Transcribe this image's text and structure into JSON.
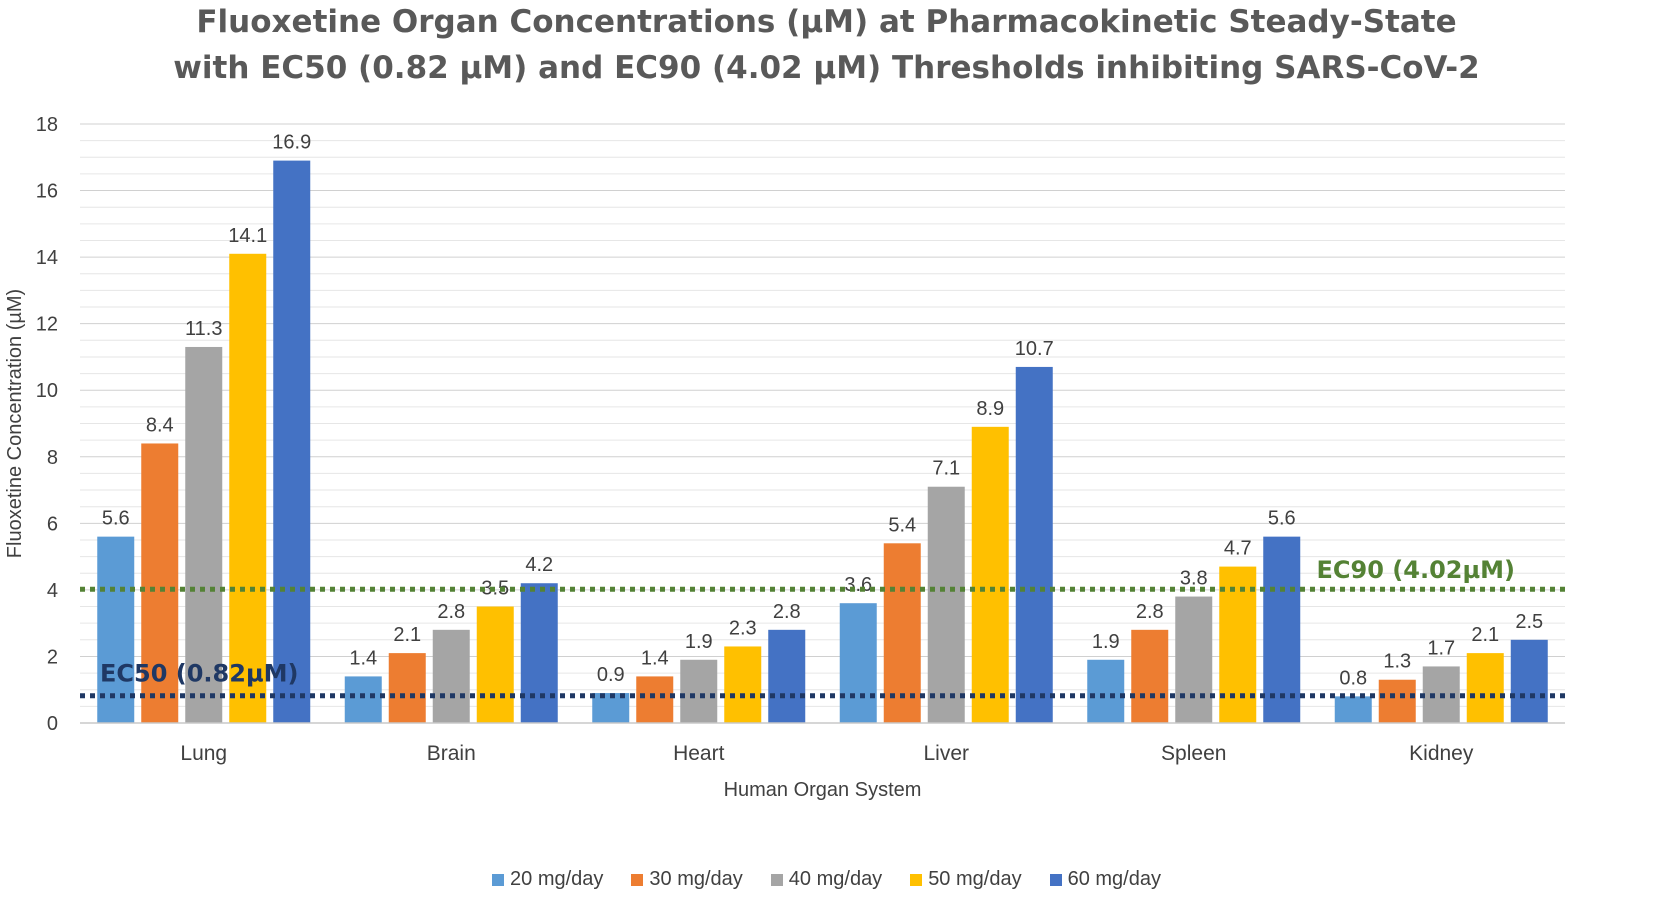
{
  "chart_data": {
    "type": "bar",
    "title_line1": "Fluoxetine Organ Concentrations (µM) at Pharmacokinetic Steady-State",
    "title_line2": "with EC50 (0.82 µM) and EC90 (4.02 µM) Thresholds inhibiting SARS-CoV-2",
    "xlabel": "Human Organ System",
    "ylabel": "Fluoxetine Concentration (µM)",
    "ylim": [
      0,
      18
    ],
    "yticks": [
      0,
      2,
      4,
      6,
      8,
      10,
      12,
      14,
      16,
      18
    ],
    "grid": "on",
    "legend_position": "bottom",
    "categories": [
      "Lung",
      "Brain",
      "Heart",
      "Liver",
      "Spleen",
      "Kidney"
    ],
    "series": [
      {
        "name": "20 mg/day",
        "color": "#5B9BD5",
        "values": [
          5.6,
          1.4,
          0.9,
          3.6,
          1.9,
          0.8
        ]
      },
      {
        "name": "30 mg/day",
        "color": "#ED7D31",
        "values": [
          8.4,
          2.1,
          1.4,
          5.4,
          2.8,
          1.3
        ]
      },
      {
        "name": "40 mg/day",
        "color": "#A5A5A5",
        "values": [
          11.3,
          2.8,
          1.9,
          7.1,
          3.8,
          1.7
        ]
      },
      {
        "name": "50 mg/day",
        "color": "#FFC000",
        "values": [
          14.1,
          3.5,
          2.3,
          8.9,
          4.7,
          2.1
        ]
      },
      {
        "name": "60 mg/day",
        "color": "#4472C4",
        "values": [
          16.9,
          4.2,
          2.8,
          10.7,
          5.6,
          2.5
        ]
      }
    ],
    "threshold_lines": [
      {
        "label": "EC50 (0.82µM)",
        "value": 0.82,
        "color": "#1F3864"
      },
      {
        "label": "EC90 (4.02µM)",
        "value": 4.02,
        "color": "#548235"
      }
    ]
  }
}
